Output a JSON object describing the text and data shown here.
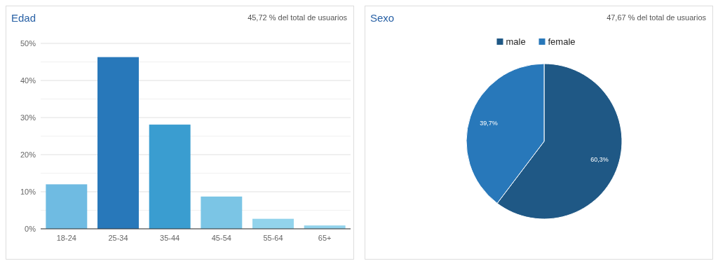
{
  "chart_data": [
    {
      "type": "bar",
      "title": "Edad",
      "subtitle": "45,72 % del total de usuarios",
      "categories": [
        "18-24",
        "25-34",
        "35-44",
        "45-54",
        "55-64",
        "65+"
      ],
      "values": [
        12.0,
        46.3,
        28.1,
        8.7,
        2.7,
        0.9
      ],
      "colors": [
        "#6fbbe2",
        "#2878ba",
        "#3a9dd0",
        "#7bc5e5",
        "#92d3ec",
        "#92d3ec"
      ],
      "ylim": [
        0,
        50
      ],
      "yticks": [
        {
          "value": 0,
          "label": "0%"
        },
        {
          "value": 5,
          "label": null
        },
        {
          "value": 10,
          "label": "10%"
        },
        {
          "value": 15,
          "label": null
        },
        {
          "value": 20,
          "label": "20%"
        },
        {
          "value": 25,
          "label": null
        },
        {
          "value": 30,
          "label": "30%"
        },
        {
          "value": 35,
          "label": null
        },
        {
          "value": 40,
          "label": "40%"
        },
        {
          "value": 45,
          "label": null
        },
        {
          "value": 50,
          "label": "50%"
        }
      ],
      "grid": "y"
    },
    {
      "type": "pie",
      "title": "Sexo",
      "subtitle": "47,67 % del total de usuarios",
      "categories": [
        "male",
        "female"
      ],
      "values": [
        60.3,
        39.7
      ],
      "colors": [
        "#1f5885",
        "#2878ba"
      ],
      "value_labels": [
        "60,3%",
        "39,7%"
      ],
      "legend": "top"
    }
  ]
}
